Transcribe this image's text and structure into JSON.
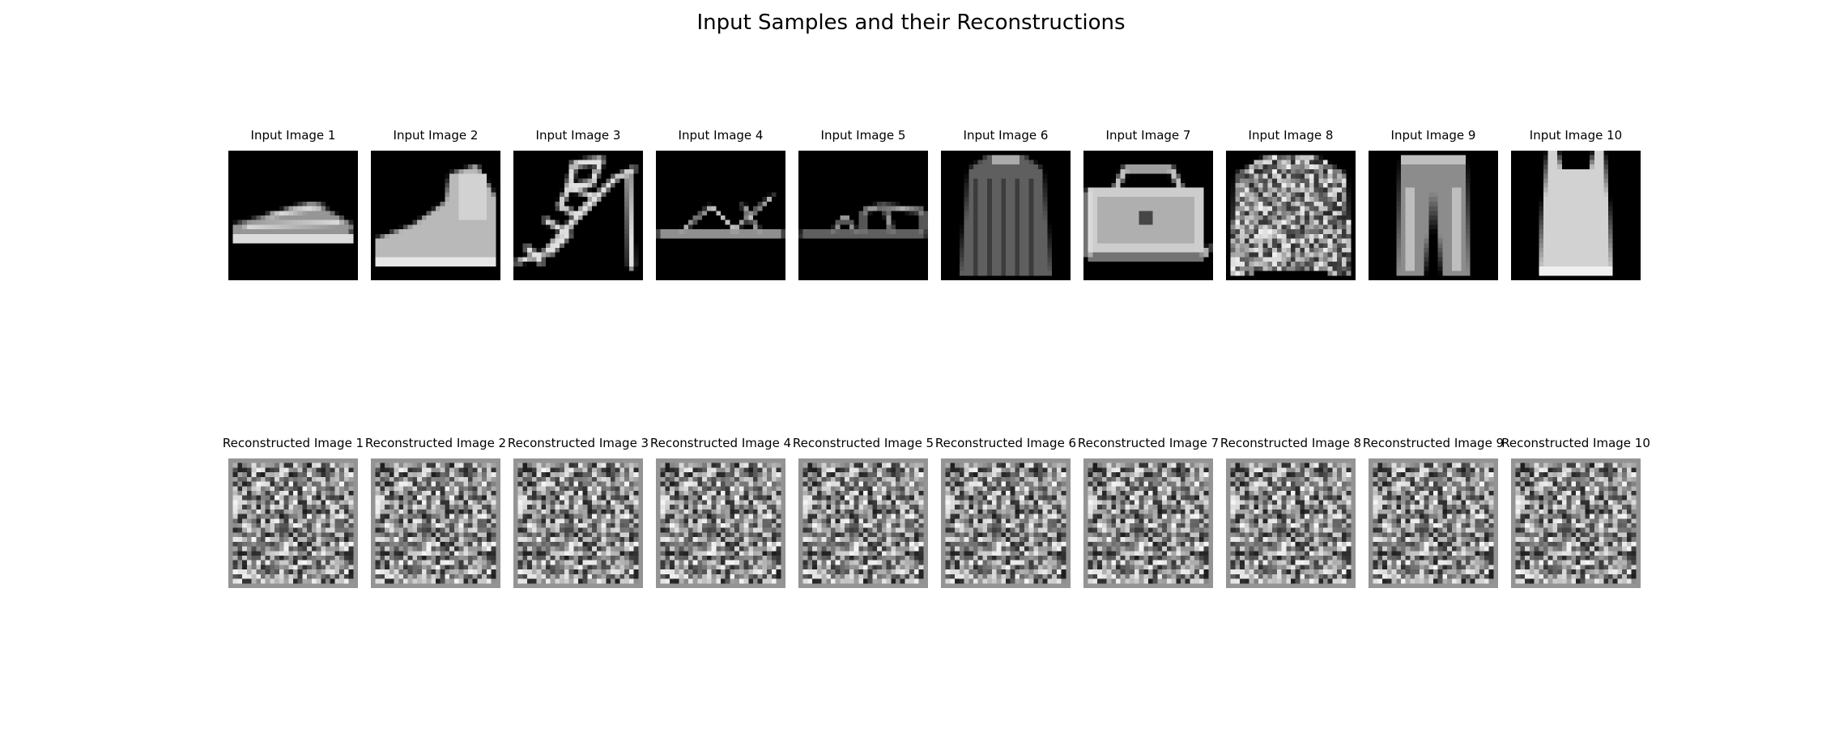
{
  "figure": {
    "title": "Input Samples and their Reconstructions"
  },
  "input_row": [
    {
      "label": "Input Image 1",
      "item": "sneaker"
    },
    {
      "label": "Input Image 2",
      "item": "ankle-boot"
    },
    {
      "label": "Input Image 3",
      "item": "strappy-sandal"
    },
    {
      "label": "Input Image 4",
      "item": "flat-sandal"
    },
    {
      "label": "Input Image 5",
      "item": "slide-sandal"
    },
    {
      "label": "Input Image 6",
      "item": "dress"
    },
    {
      "label": "Input Image 7",
      "item": "bag"
    },
    {
      "label": "Input Image 8",
      "item": "patterned-shirt"
    },
    {
      "label": "Input Image 9",
      "item": "trouser"
    },
    {
      "label": "Input Image 10",
      "item": "tank-top"
    }
  ],
  "reconstruction_row": [
    {
      "label": "Reconstructed Image 1"
    },
    {
      "label": "Reconstructed Image 2"
    },
    {
      "label": "Reconstructed Image 3"
    },
    {
      "label": "Reconstructed Image 4"
    },
    {
      "label": "Reconstructed Image 5"
    },
    {
      "label": "Reconstructed Image 6"
    },
    {
      "label": "Reconstructed Image 7"
    },
    {
      "label": "Reconstructed Image 8"
    },
    {
      "label": "Reconstructed Image 9"
    },
    {
      "label": "Reconstructed Image 10"
    }
  ],
  "image_style": {
    "colormap": "gray",
    "background": "#000000",
    "pixel_grid": 28
  }
}
